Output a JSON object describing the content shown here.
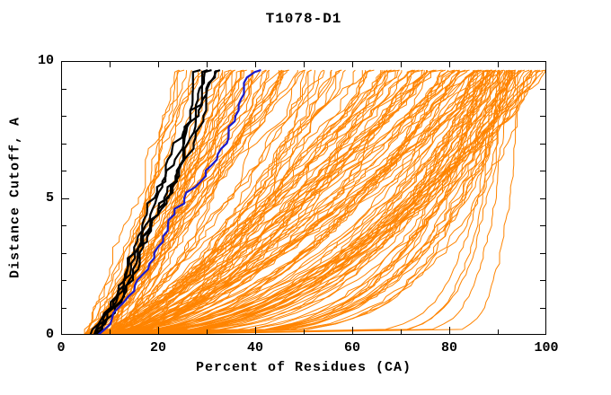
{
  "chart_data": {
    "type": "line",
    "title": "T1078-D1",
    "xlabel": "Percent of Residues (CA)",
    "ylabel": "Distance Cutoff, A",
    "xlim": [
      0,
      100
    ],
    "ylim": [
      0,
      10
    ],
    "xticks_major": [
      0,
      20,
      40,
      60,
      80,
      100
    ],
    "xticks_minor": [
      10,
      30,
      50,
      70,
      90
    ],
    "yticks_major": [
      0,
      5,
      10
    ],
    "yticks_minor": [
      1,
      2,
      3,
      4,
      6,
      7,
      8,
      9
    ],
    "grid": false,
    "legend": "none",
    "curve_top_cutoff": 9.67,
    "seed": 1078,
    "frame_color": "#000000",
    "background": "#ffffff",
    "groups": [
      {
        "name": "models-steep",
        "color": "#ff8400",
        "width": 1,
        "count": 42,
        "x0": [
          4.5,
          11
        ],
        "xtop": [
          24,
          50
        ],
        "q": [
          0.7,
          1.05
        ],
        "jitter": 1.6
      },
      {
        "name": "models-mid",
        "color": "#ff8400",
        "width": 1,
        "count": 72,
        "x0": [
          5,
          12
        ],
        "xtop": [
          50,
          90
        ],
        "q": [
          0.4,
          0.9
        ],
        "jitter": 1.8
      },
      {
        "name": "models-late",
        "color": "#ff8400",
        "width": 1,
        "count": 42,
        "x0": [
          5,
          12
        ],
        "xtop": [
          86,
          97
        ],
        "q": [
          0.18,
          0.45
        ],
        "jitter": 1.5
      },
      {
        "name": "models-flat",
        "color": "#ff8400",
        "width": 1,
        "count": 5,
        "x0": [
          6,
          12
        ],
        "xtop": [
          90,
          95
        ],
        "q": [
          0.04,
          0.09
        ],
        "jitter": 0.7
      },
      {
        "name": "models-full",
        "color": "#ff8400",
        "width": 1,
        "count": 7,
        "x0": [
          5,
          10
        ],
        "xtop": [
          97,
          100
        ],
        "q": [
          0.3,
          0.55
        ],
        "jitter": 1.5
      },
      {
        "name": "highlight",
        "color": "#000000",
        "width": 2.2,
        "count": 5,
        "x0": [
          5.5,
          8.5
        ],
        "xtop": [
          28.5,
          35
        ],
        "q": [
          0.75,
          0.95
        ],
        "jitter": 2.2
      },
      {
        "name": "reference",
        "color": "#1a1acc",
        "width": 2.2,
        "count": 1,
        "x0": [
          7.5,
          8.5
        ],
        "xtop": [
          41,
          41.5
        ],
        "q": [
          0.9,
          0.95
        ],
        "jitter": 2.0
      }
    ]
  }
}
